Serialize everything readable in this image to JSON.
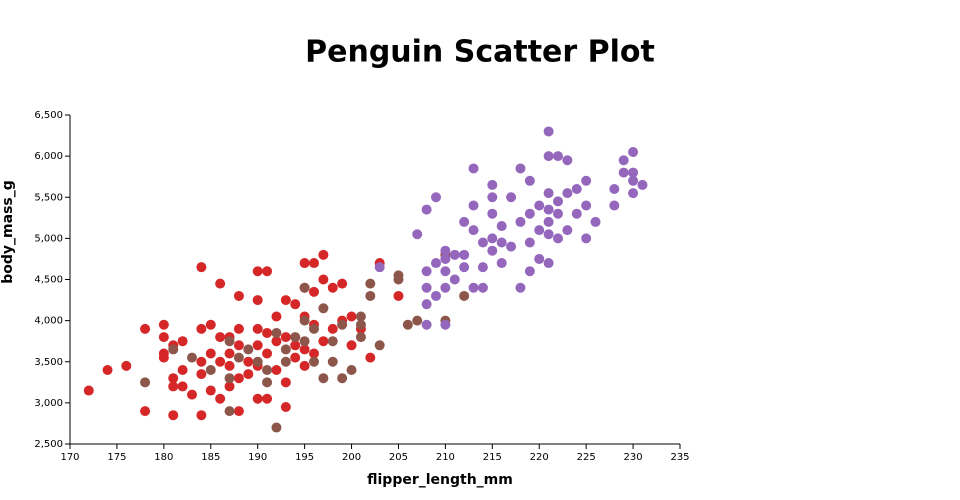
{
  "chart_data": {
    "type": "scatter",
    "title": "Penguin Scatter Plot",
    "x_label": "flipper_length_mm",
    "y_label": "body_mass_g",
    "xlim": [
      170,
      235
    ],
    "ylim": [
      2500,
      6500
    ],
    "xticks": [
      170,
      175,
      180,
      185,
      190,
      195,
      200,
      205,
      210,
      215,
      220,
      225,
      230,
      235
    ],
    "yticks": [
      {
        "value": 2500,
        "label": "2,500"
      },
      {
        "value": 3000,
        "label": "3,000"
      },
      {
        "value": 3500,
        "label": "3,500"
      },
      {
        "value": 4000,
        "label": "4,000"
      },
      {
        "value": 4500,
        "label": "4,500"
      },
      {
        "value": 5000,
        "label": "5,000"
      },
      {
        "value": 5500,
        "label": "5,500"
      },
      {
        "value": 6000,
        "label": "6,000"
      },
      {
        "value": 6500,
        "label": "6,500"
      }
    ],
    "series": [
      {
        "color": "#d62728",
        "x": [
          172,
          174,
          176,
          178,
          178,
          180,
          180,
          180,
          180,
          181,
          181,
          181,
          181,
          182,
          182,
          182,
          183,
          184,
          184,
          184,
          184,
          184,
          185,
          185,
          185,
          186,
          186,
          186,
          186,
          187,
          187,
          187,
          187,
          188,
          188,
          188,
          188,
          188,
          189,
          189,
          190,
          190,
          190,
          190,
          190,
          190,
          191,
          191,
          191,
          191,
          192,
          192,
          192,
          193,
          193,
          193,
          193,
          194,
          194,
          194,
          195,
          195,
          195,
          195,
          195,
          196,
          196,
          196,
          196,
          197,
          197,
          197,
          198,
          198,
          199,
          199,
          200,
          200,
          201,
          202,
          203,
          205
        ],
        "values": [
          3150,
          3400,
          3450,
          3900,
          2900,
          3950,
          3800,
          3600,
          3550,
          3700,
          3300,
          3200,
          2850,
          3750,
          3400,
          3200,
          3100,
          4650,
          3900,
          3500,
          3350,
          2850,
          3950,
          3600,
          3150,
          4450,
          3800,
          3500,
          3050,
          3800,
          3600,
          3450,
          3200,
          4300,
          3900,
          3700,
          3300,
          2900,
          3500,
          3350,
          4600,
          4250,
          3900,
          3700,
          3450,
          3050,
          4600,
          3850,
          3600,
          3050,
          4050,
          3750,
          3400,
          4250,
          3800,
          3250,
          2950,
          4200,
          3700,
          3550,
          4700,
          4400,
          4050,
          3650,
          3450,
          4700,
          4350,
          3950,
          3600,
          4800,
          4500,
          3750,
          4400,
          3900,
          4450,
          4000,
          4050,
          3700,
          3900,
          3550,
          4700,
          4300
        ]
      },
      {
        "color": "#8c564b",
        "x": [
          178,
          181,
          183,
          185,
          187,
          187,
          187,
          188,
          189,
          190,
          191,
          191,
          192,
          192,
          193,
          193,
          194,
          195,
          195,
          195,
          196,
          196,
          197,
          197,
          198,
          198,
          199,
          199,
          200,
          201,
          201,
          201,
          202,
          202,
          203,
          205,
          205,
          206,
          207,
          210,
          210,
          212
        ],
        "values": [
          3250,
          3650,
          3550,
          3400,
          3750,
          3300,
          2900,
          3550,
          3650,
          3500,
          3400,
          3250,
          3850,
          2700,
          3650,
          3500,
          3800,
          4400,
          4000,
          3750,
          3900,
          3500,
          4150,
          3300,
          3750,
          3500,
          3950,
          3300,
          3400,
          4050,
          3950,
          3800,
          4450,
          4300,
          3700,
          4550,
          4500,
          3950,
          4000,
          4800,
          4000,
          4300
        ]
      },
      {
        "color": "#9467bd",
        "x": [
          203,
          207,
          208,
          208,
          208,
          208,
          208,
          209,
          209,
          209,
          210,
          210,
          210,
          210,
          210,
          211,
          211,
          212,
          212,
          212,
          213,
          213,
          213,
          213,
          214,
          214,
          214,
          215,
          215,
          215,
          215,
          215,
          216,
          216,
          216,
          217,
          217,
          218,
          218,
          218,
          219,
          219,
          219,
          219,
          220,
          220,
          220,
          221,
          221,
          221,
          221,
          221,
          221,
          221,
          222,
          222,
          222,
          222,
          223,
          223,
          223,
          224,
          224,
          225,
          225,
          225,
          226,
          228,
          228,
          229,
          229,
          230,
          230,
          230,
          230,
          231
        ],
        "values": [
          4650,
          5050,
          5350,
          4600,
          4400,
          4200,
          3950,
          5500,
          4700,
          4300,
          4850,
          4750,
          4600,
          4400,
          3950,
          4800,
          4500,
          5200,
          4800,
          4650,
          5850,
          5400,
          4400,
          5100,
          4950,
          4650,
          4400,
          5650,
          5500,
          5300,
          5000,
          4850,
          5150,
          4950,
          4700,
          5500,
          4900,
          5850,
          5200,
          4400,
          5700,
          5300,
          4950,
          4600,
          5400,
          5100,
          4750,
          6000,
          5550,
          5350,
          5050,
          4700,
          5200,
          6300,
          5450,
          5300,
          5000,
          6000,
          5550,
          5950,
          5100,
          5600,
          5300,
          5700,
          5400,
          5000,
          5200,
          5600,
          5400,
          5950,
          5800,
          6050,
          5800,
          5550,
          5700,
          5650
        ]
      }
    ]
  }
}
